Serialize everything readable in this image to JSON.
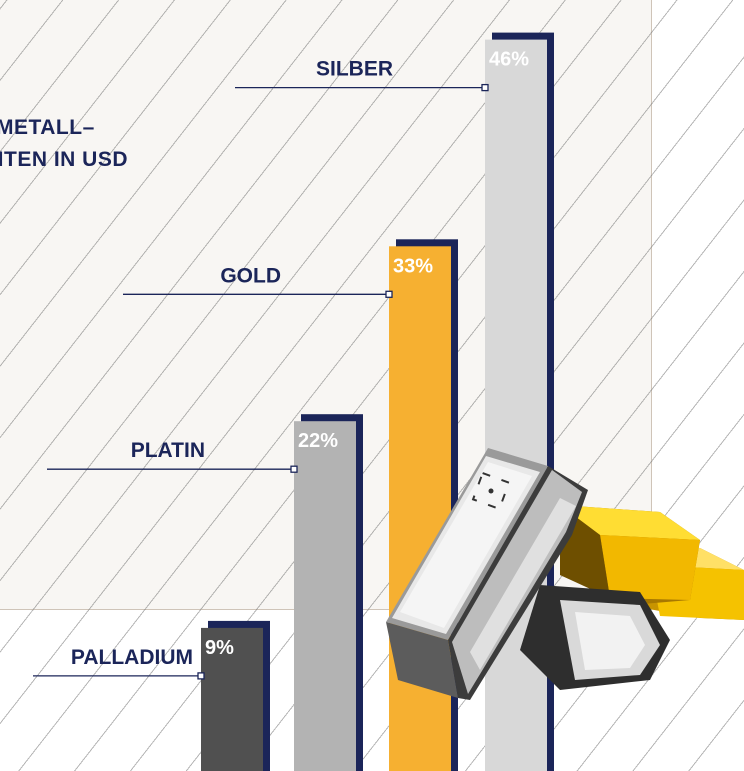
{
  "chart_data": {
    "type": "bar",
    "title_lines": [
      "METALL–",
      "DITEN IN USD"
    ],
    "categories": [
      "PALLADIUM",
      "PLATIN",
      "GOLD",
      "SILBER"
    ],
    "values": [
      9,
      22,
      33,
      46
    ],
    "value_labels": [
      "9%",
      "22%",
      "33%",
      "46%"
    ],
    "unit": "%",
    "ylim": [
      0,
      48
    ],
    "colors": [
      "#505050",
      "#b3b3b3",
      "#f6b031",
      "#d8d8d8"
    ],
    "shadow_color": "#1b2559",
    "label_color": "#1b2559",
    "grid": false,
    "legend": "none"
  },
  "illustration": {
    "type": "metal-bars-icon",
    "colors": [
      "#c9c9c9",
      "#f5c200"
    ]
  }
}
